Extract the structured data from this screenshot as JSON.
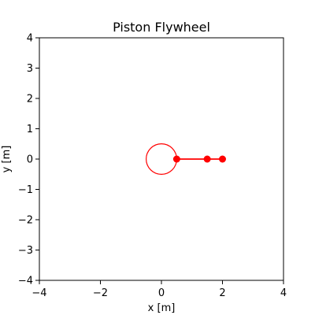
{
  "chart_data": {
    "type": "scatter",
    "title": "Piston Flywheel",
    "xlabel": "x [m]",
    "ylabel": "y [m]",
    "xlim": [
      -4,
      4
    ],
    "ylim": [
      -4,
      4
    ],
    "x_ticks": [
      -4,
      -2,
      0,
      2,
      4
    ],
    "y_ticks": [
      -4,
      -3,
      -2,
      -1,
      0,
      1,
      2,
      3,
      4
    ],
    "grid": false,
    "flywheel": {
      "center": [
        0,
        0
      ],
      "radius": 0.5
    },
    "linkage_line": {
      "x": [
        0.5,
        2.0
      ],
      "y": [
        0,
        0
      ]
    },
    "joints": [
      {
        "x": 0.5,
        "y": 0
      },
      {
        "x": 1.5,
        "y": 0
      },
      {
        "x": 2.0,
        "y": 0
      }
    ],
    "color": "#ff0000"
  },
  "y_tick_text": [
    "−4",
    "−3",
    "−2",
    "−1",
    "0",
    "1",
    "2",
    "3",
    "4"
  ],
  "x_tick_text": [
    "−4",
    "−2",
    "0",
    "2",
    "4"
  ]
}
